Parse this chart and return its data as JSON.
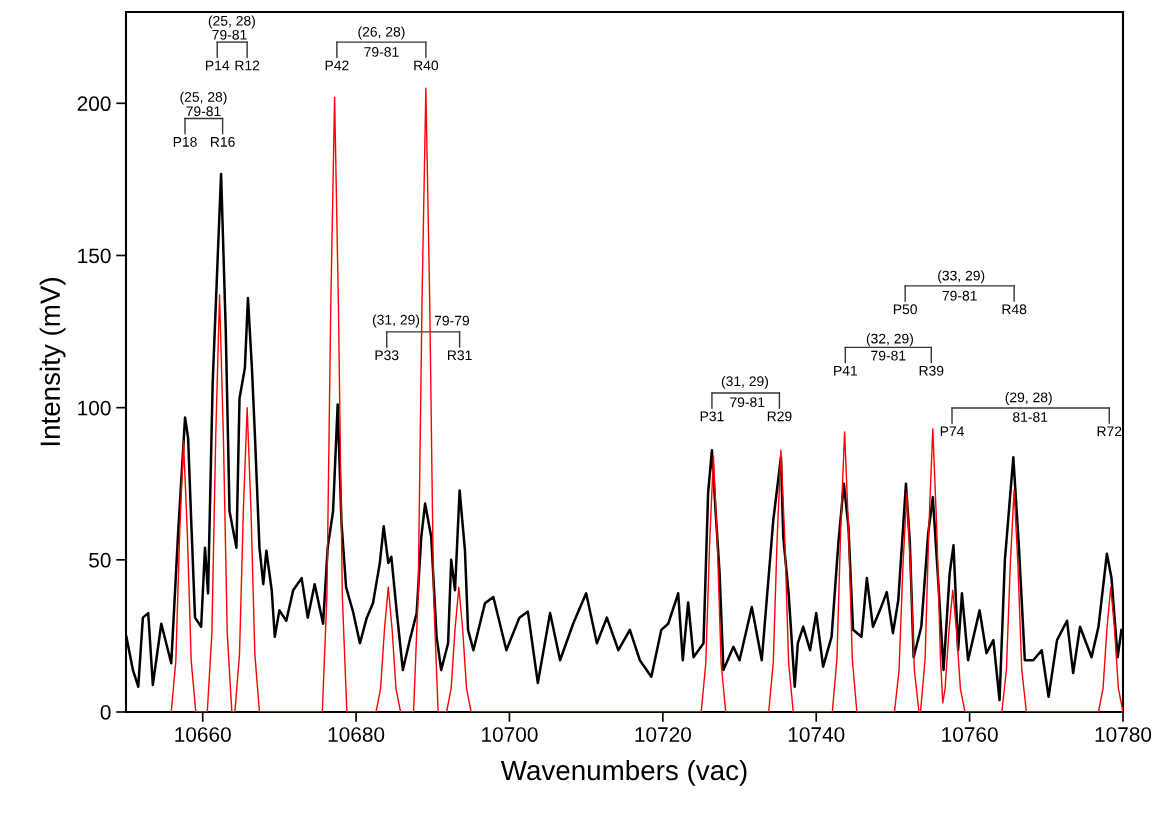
{
  "chart_data": {
    "type": "line",
    "xlabel": "Wavenumbers (vac)",
    "ylabel": "Intensity (mV)",
    "xlim": [
      10650,
      10780
    ],
    "xticks": [
      10660,
      10680,
      10700,
      10720,
      10740,
      10760,
      10780
    ],
    "ylim": [
      0,
      230
    ],
    "yticks": [
      0,
      50,
      100,
      150,
      200
    ],
    "grid": false,
    "marker": "none",
    "line_style": "solid",
    "series": [
      {
        "color": "#000000",
        "x": [
          10650.05,
          10650.9,
          10651.6,
          10652.2,
          10652.9,
          10653.5,
          10654.6,
          10655.9,
          10656.8,
          10657.7,
          10658.1,
          10658.5,
          10659.0,
          10659.8,
          10660.3,
          10660.7,
          10661.3,
          10662.0,
          10662.4,
          10663.0,
          10663.5,
          10664.4,
          10664.8,
          10665.5,
          10665.9,
          10666.4,
          10666.8,
          10667.4,
          10667.9,
          10668.3,
          10669.0,
          10669.4,
          10670.0,
          10670.9,
          10671.8,
          10672.9,
          10673.7,
          10674.6,
          10675.7,
          10676.3,
          10677.0,
          10677.6,
          10678.1,
          10678.7,
          10679.6,
          10680.5,
          10681.4,
          10682.2,
          10683.1,
          10683.6,
          10684.2,
          10684.6,
          10685.3,
          10686.1,
          10687.0,
          10687.9,
          10688.5,
          10689.0,
          10689.8,
          10690.5,
          10691.1,
          10692.0,
          10692.4,
          10692.9,
          10693.5,
          10694.2,
          10694.6,
          10695.3,
          10696.8,
          10697.9,
          10699.6,
          10701.3,
          10702.4,
          10703.7,
          10705.3,
          10706.6,
          10708.3,
          10710.0,
          10711.4,
          10712.7,
          10714.2,
          10715.7,
          10717.0,
          10718.5,
          10719.8,
          10720.7,
          10722.0,
          10722.6,
          10723.3,
          10724.0,
          10725.3,
          10725.9,
          10726.4,
          10726.9,
          10727.4,
          10727.9,
          10729.2,
          10730.0,
          10731.6,
          10732.9,
          10734.4,
          10735.4,
          10735.7,
          10736.4,
          10737.2,
          10737.6,
          10738.3,
          10739.2,
          10740.0,
          10740.9,
          10742.0,
          10742.9,
          10743.6,
          10744.2,
          10744.8,
          10745.9,
          10746.6,
          10747.4,
          10748.3,
          10749.2,
          10750.0,
          10750.7,
          10751.7,
          10752.2,
          10752.7,
          10753.7,
          10754.6,
          10755.2,
          10755.9,
          10756.6,
          10757.4,
          10757.9,
          10758.5,
          10759.0,
          10759.8,
          10761.3,
          10762.2,
          10763.1,
          10763.9,
          10764.6,
          10765.7,
          10766.4,
          10767.2,
          10768.3,
          10769.4,
          10770.3,
          10771.4,
          10772.7,
          10773.5,
          10774.4,
          10775.9,
          10776.8,
          10777.9,
          10778.5,
          10779.3,
          10779.8
        ],
        "values": [
          24.7,
          13.8,
          8.3,
          31,
          32.5,
          8.9,
          29,
          16,
          59,
          96.8,
          90,
          63,
          31,
          28,
          54,
          39,
          108,
          152,
          176.8,
          126,
          66,
          54,
          103,
          113,
          136,
          114,
          91.5,
          54,
          42,
          53,
          40,
          24.7,
          33.4,
          30,
          40,
          44,
          31,
          42,
          29,
          54,
          66,
          101,
          62,
          41,
          33,
          22.6,
          31,
          35.7,
          49,
          61,
          49,
          51,
          33,
          13.8,
          23.6,
          32.5,
          57.5,
          68.5,
          57.5,
          24.7,
          13.8,
          22.6,
          50,
          40,
          72.8,
          53,
          27,
          20.3,
          35.7,
          37.8,
          20.3,
          31,
          33,
          9.5,
          32.5,
          17,
          29,
          39,
          22.6,
          31,
          20.3,
          27,
          17,
          11.6,
          27,
          29,
          39,
          17,
          36,
          18,
          22.6,
          71.8,
          86,
          65,
          45.6,
          13.8,
          21.4,
          17,
          34.5,
          17,
          63,
          83.7,
          57.5,
          39,
          8.3,
          22.6,
          28,
          20.3,
          32.5,
          14.9,
          24.7,
          56,
          75,
          60.8,
          27,
          24.7,
          44,
          28,
          33.4,
          39.4,
          25.9,
          36.7,
          75,
          56,
          18,
          28,
          58.7,
          70.6,
          43.3,
          13.8,
          45.6,
          54.8,
          20.3,
          39,
          17,
          33.4,
          19.3,
          23.6,
          3.9,
          50,
          83.7,
          55.4,
          17,
          17,
          20.3,
          5,
          23.6,
          30,
          12.8,
          28,
          18,
          28,
          52,
          44,
          18,
          27
        ]
      },
      {
        "color": "#ff0000",
        "x": [
          10655.9,
          10656.5,
          10657.0,
          10657.5,
          10658.0,
          10658.5,
          10659.1,
          10660.6,
          10661.2,
          10661.7,
          10662.2,
          10662.7,
          10663.2,
          10663.8,
          10664.2,
          10664.8,
          10665.3,
          10665.8,
          10666.3,
          10666.8,
          10667.4,
          10675.6,
          10676.2,
          10676.7,
          10677.2,
          10677.7,
          10678.2,
          10678.8,
          10682.6,
          10683.2,
          10683.7,
          10684.2,
          10684.7,
          10685.2,
          10685.8,
          10687.5,
          10688.1,
          10688.6,
          10689.1,
          10689.6,
          10690.1,
          10690.7,
          10691.8,
          10692.4,
          10692.9,
          10693.4,
          10693.9,
          10694.4,
          10695.0,
          10725.0,
          10725.6,
          10726.1,
          10726.6,
          10727.1,
          10727.6,
          10728.2,
          10733.8,
          10734.4,
          10734.9,
          10735.4,
          10735.9,
          10736.4,
          10737.0,
          10742.1,
          10742.7,
          10743.2,
          10743.7,
          10744.2,
          10744.7,
          10745.3,
          10750.2,
          10750.8,
          10751.3,
          10751.8,
          10752.3,
          10752.8,
          10753.4,
          10753.6,
          10754.2,
          10754.7,
          10755.2,
          10755.7,
          10756.2,
          10756.5,
          10756.8,
          10757.3,
          10757.8,
          10758.3,
          10758.8,
          10759.4,
          10764.2,
          10764.8,
          10765.3,
          10765.8,
          10766.3,
          10766.8,
          10767.4,
          10776.8,
          10777.4,
          10777.9,
          10778.4,
          10778.9,
          10779.4,
          10780
        ],
        "values": [
          0,
          16.9,
          58.7,
          89,
          58.7,
          16.9,
          0,
          0,
          26,
          90.4,
          137,
          90.4,
          26,
          0,
          0,
          19,
          66,
          100,
          66,
          19,
          0,
          0,
          38.4,
          133.3,
          202,
          133.3,
          38.4,
          0,
          0,
          7.8,
          27.1,
          41,
          27.1,
          7.8,
          0,
          0,
          39,
          135.3,
          205,
          135.3,
          39,
          0,
          0,
          7.8,
          27.1,
          41,
          27.1,
          7.8,
          0,
          0,
          16,
          55.4,
          84,
          55.4,
          16,
          0,
          0,
          16.3,
          56.8,
          86,
          56.8,
          16.3,
          0,
          0,
          17.5,
          60.7,
          92,
          60.7,
          17.5,
          0,
          0,
          13.7,
          47.5,
          72,
          47.5,
          13.7,
          0,
          0,
          17.7,
          61.4,
          93,
          61.4,
          17.7,
          3,
          7.6,
          26.4,
          40,
          26.4,
          7.6,
          0,
          0,
          13.9,
          48.2,
          73,
          48.2,
          13.9,
          0,
          0,
          7.8,
          27.1,
          41,
          27.1,
          7.8,
          0
        ]
      }
    ],
    "annotations": [
      "(25, 28)",
      "79-81",
      "P14",
      "R12",
      "(25, 28)",
      "79-81",
      "P18",
      "R16",
      "(26, 28)",
      "79-81",
      "P42",
      "R40",
      "(31, 29)",
      "79-79",
      "P33",
      "R31",
      "(31, 29)",
      "79-81",
      "P31",
      "R29",
      "(33, 29)",
      "79-81",
      "P50",
      "R48",
      "(32, 29)",
      "79-81",
      "P41",
      "R39",
      "(29, 28)",
      "81-81",
      "P74",
      "R72"
    ]
  }
}
